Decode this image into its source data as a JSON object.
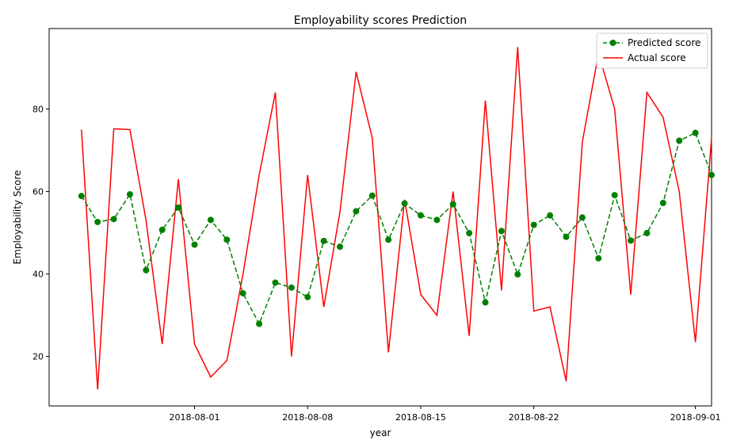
{
  "chart_data": {
    "type": "line",
    "title": "Employability scores Prediction",
    "xlabel": "year",
    "ylabel": "Employability Score",
    "x_tick_labels": [
      "2018-08-01",
      "2018-08-08",
      "2018-08-15",
      "2018-08-22",
      "2018-09-01"
    ],
    "x_tick_dates": [
      "2018-08-01",
      "2018-08-08",
      "2018-08-15",
      "2018-08-22",
      "2018-09-01"
    ],
    "y_ticks": [
      20,
      40,
      60,
      80
    ],
    "xlim": [
      "2018-07-23",
      "2018-09-02"
    ],
    "ylim": [
      8.0,
      99.5
    ],
    "grid": false,
    "legend_position": "top-right",
    "dates": [
      "2018-07-25",
      "2018-07-26",
      "2018-07-27",
      "2018-07-28",
      "2018-07-29",
      "2018-07-30",
      "2018-07-31",
      "2018-08-01",
      "2018-08-02",
      "2018-08-03",
      "2018-08-04",
      "2018-08-05",
      "2018-08-06",
      "2018-08-07",
      "2018-08-08",
      "2018-08-09",
      "2018-08-10",
      "2018-08-11",
      "2018-08-12",
      "2018-08-13",
      "2018-08-14",
      "2018-08-15",
      "2018-08-16",
      "2018-08-17",
      "2018-08-18",
      "2018-08-19",
      "2018-08-20",
      "2018-08-21",
      "2018-08-22",
      "2018-08-23",
      "2018-08-24",
      "2018-08-25",
      "2018-08-26",
      "2018-08-27",
      "2018-08-28",
      "2018-08-29",
      "2018-08-30",
      "2018-08-31",
      "2018-09-01",
      "2018-09-02"
    ],
    "series": [
      {
        "name": "Predicted score",
        "color": "#008000",
        "style": "dashed-with-markers",
        "values": [
          58.9,
          52.6,
          53.3,
          59.3,
          40.9,
          50.7,
          56.1,
          47.1,
          53.1,
          48.3,
          35.3,
          27.9,
          37.9,
          36.7,
          34.4,
          48.0,
          46.6,
          55.2,
          59.0,
          48.3,
          57.1,
          54.2,
          53.1,
          56.9,
          49.9,
          33.1,
          50.4,
          39.9,
          51.9,
          54.2,
          49.0,
          53.7,
          43.8,
          59.1,
          48.1,
          49.9,
          57.2,
          72.3,
          74.2,
          64.0
        ]
      },
      {
        "name": "Actual score",
        "color": "#ff0000",
        "style": "solid",
        "values": [
          75.0,
          12.0,
          75.2,
          75.0,
          53.0,
          23.0,
          63.0,
          23.0,
          15.0,
          19.0,
          40.0,
          64.0,
          84.0,
          20.0,
          64.0,
          32.0,
          55.0,
          89.0,
          73.0,
          21.0,
          58.0,
          35.0,
          30.0,
          60.0,
          25.0,
          82.0,
          36.0,
          95.0,
          31.0,
          32.0,
          14.0,
          72.0,
          93.5,
          80.0,
          35.0,
          84.0,
          78.0,
          60.0,
          23.5,
          73.0
        ]
      }
    ]
  }
}
